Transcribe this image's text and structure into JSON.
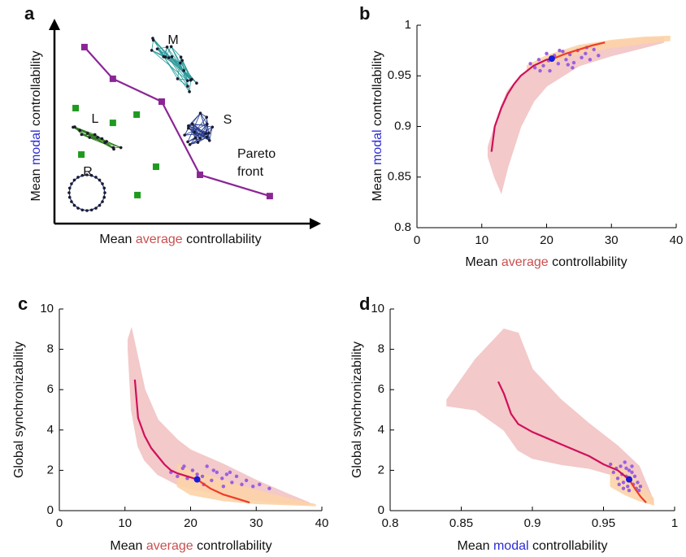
{
  "chart_data": [
    {
      "type": "scatter",
      "panel": "a",
      "xlabel": [
        {
          "text": "Mean "
        },
        {
          "text": "average",
          "color": "#c9504f"
        },
        {
          "text": " controllability"
        }
      ],
      "ylabel": [
        {
          "text": "Mean "
        },
        {
          "text": "modal",
          "color": "#2b2bd6"
        },
        {
          "text": " controllability"
        }
      ],
      "xlim": [
        0,
        100
      ],
      "ylim": [
        0,
        100
      ],
      "pareto": {
        "color": "#8b2596",
        "label": [
          "Pareto",
          "front"
        ],
        "x": [
          11.6,
          22.6,
          41.5,
          56.3,
          83.3
        ],
        "y": [
          89.7,
          73.6,
          62.0,
          24.8,
          14.0
        ]
      },
      "points": {
        "color": "#1f9a1f",
        "x": [
          8.2,
          22.6,
          31.8,
          10.4,
          39.3,
          32.1
        ],
        "y": [
          58.7,
          51.2,
          55.4,
          35.1,
          28.9,
          14.5
        ]
      },
      "networks": [
        "L",
        "M",
        "S",
        "R"
      ]
    },
    {
      "type": "line",
      "panel": "b",
      "xlabel": [
        {
          "text": "Mean "
        },
        {
          "text": "average",
          "color": "#c9504f"
        },
        {
          "text": " controllability"
        }
      ],
      "ylabel": [
        {
          "text": "Mean "
        },
        {
          "text": "modal",
          "color": "#2b2bd6"
        },
        {
          "text": " controllability"
        }
      ],
      "xlim": [
        0,
        40
      ],
      "xticks": [
        0,
        10,
        20,
        30,
        40
      ],
      "ylim": [
        0.8,
        1
      ],
      "yticks": [
        0.8,
        0.85,
        0.9,
        0.95,
        1
      ],
      "bands": [
        {
          "color": "#f2c4c4",
          "x": [
            11,
            12,
            13,
            14,
            16,
            18,
            20,
            25,
            30,
            35,
            38
          ],
          "lower": [
            0.87,
            0.85,
            0.835,
            0.86,
            0.9,
            0.925,
            0.94,
            0.96,
            0.97,
            0.978,
            0.983
          ],
          "upper": [
            0.88,
            0.9,
            0.92,
            0.935,
            0.95,
            0.96,
            0.967,
            0.978,
            0.984,
            0.987,
            0.988
          ]
        },
        {
          "color": "#fcd3a8",
          "x": [
            17,
            20,
            25,
            30,
            35,
            39
          ],
          "lower": [
            0.955,
            0.962,
            0.972,
            0.978,
            0.982,
            0.985
          ],
          "upper": [
            0.96,
            0.97,
            0.98,
            0.985,
            0.988,
            0.989
          ]
        }
      ],
      "points": {
        "color": "#9b5fe0",
        "x": [
          17.5,
          18.2,
          18.8,
          19.5,
          20,
          20.5,
          21.2,
          21.8,
          22.5,
          23,
          23.6,
          24.2,
          24.8,
          25.4,
          26,
          26.7,
          27.3,
          28,
          19,
          22,
          24,
          26.2,
          20.3,
          23.3
        ],
        "y": [
          0.962,
          0.958,
          0.966,
          0.96,
          0.972,
          0.955,
          0.97,
          0.962,
          0.974,
          0.966,
          0.971,
          0.963,
          0.975,
          0.968,
          0.972,
          0.966,
          0.976,
          0.97,
          0.955,
          0.975,
          0.958,
          0.978,
          0.965,
          0.961
        ]
      },
      "lines": [
        {
          "color": "#d0105c",
          "x": [
            11.5,
            12,
            13,
            14,
            15,
            16,
            17,
            18,
            19,
            20,
            21
          ],
          "y": [
            0.875,
            0.9,
            0.918,
            0.932,
            0.942,
            0.95,
            0.955,
            0.96,
            0.963,
            0.966,
            0.967
          ]
        },
        {
          "color": "#ee3b2b",
          "x": [
            21,
            23,
            25,
            27,
            29
          ],
          "y": [
            0.967,
            0.972,
            0.976,
            0.98,
            0.983
          ]
        }
      ],
      "highlight": {
        "color": "#1a1adb",
        "x": 20.8,
        "y": 0.967
      }
    },
    {
      "type": "line",
      "panel": "c",
      "xlabel": [
        {
          "text": "Mean "
        },
        {
          "text": "average",
          "color": "#c9504f"
        },
        {
          "text": " controllability"
        }
      ],
      "ylabel": [
        {
          "text": "Global synchronizability"
        }
      ],
      "xlim": [
        0,
        40
      ],
      "xticks": [
        0,
        10,
        20,
        30,
        40
      ],
      "ylim": [
        0,
        10
      ],
      "yticks": [
        0,
        2,
        4,
        6,
        8,
        10
      ],
      "bands": [
        {
          "color": "#f2c4c4",
          "x": [
            10.5,
            11,
            12,
            13,
            15,
            18,
            20,
            25,
            30,
            35,
            38
          ],
          "lower": [
            8,
            5,
            3.2,
            2.5,
            1.8,
            1.3,
            1.1,
            0.8,
            0.5,
            0.35,
            0.3
          ],
          "upper": [
            8.5,
            9,
            7.5,
            6,
            4.5,
            3.5,
            3,
            2.3,
            1.5,
            0.8,
            0.4
          ]
        },
        {
          "color": "#fcd3a8",
          "x": [
            18,
            20,
            25,
            30,
            35,
            39
          ],
          "lower": [
            1.2,
            0.8,
            0.5,
            0.35,
            0.3,
            0.25
          ],
          "upper": [
            2.3,
            2,
            1.5,
            1,
            0.6,
            0.3
          ]
        }
      ],
      "points": {
        "color": "#9b5fe0",
        "x": [
          17,
          18,
          18.8,
          19.5,
          20.3,
          21,
          21.8,
          22.5,
          23.2,
          24,
          24.8,
          25.5,
          26.3,
          27,
          27.8,
          28.5,
          29.5,
          30.5,
          32,
          19,
          22,
          25,
          23.5,
          26
        ],
        "y": [
          1.9,
          1.7,
          2.1,
          1.6,
          2.0,
          1.8,
          1.7,
          2.2,
          1.5,
          1.9,
          1.6,
          1.8,
          1.4,
          1.7,
          1.3,
          1.5,
          1.2,
          1.3,
          1.1,
          2.2,
          1.3,
          1.2,
          2.0,
          1.9
        ]
      },
      "lines": [
        {
          "color": "#d0105c",
          "x": [
            11.5,
            12,
            13,
            14,
            15,
            16,
            17,
            18,
            19,
            20,
            21
          ],
          "y": [
            6.5,
            4.6,
            3.7,
            3.1,
            2.7,
            2.3,
            2.0,
            1.85,
            1.75,
            1.65,
            1.55
          ]
        },
        {
          "color": "#ee3b2b",
          "x": [
            21,
            23,
            25,
            27,
            29
          ],
          "y": [
            1.55,
            1.1,
            0.8,
            0.6,
            0.4
          ]
        }
      ],
      "highlight": {
        "color": "#1a1adb",
        "x": 21,
        "y": 1.55
      }
    },
    {
      "type": "line",
      "panel": "d",
      "xlabel": [
        {
          "text": "Mean "
        },
        {
          "text": "modal",
          "color": "#2b2bd6"
        },
        {
          "text": " controllability"
        }
      ],
      "ylabel": [
        {
          "text": "Global synchronizability"
        }
      ],
      "xlim": [
        0.8,
        1
      ],
      "xticks": [
        0.8,
        0.85,
        0.9,
        0.95,
        1
      ],
      "ylim": [
        0,
        10
      ],
      "yticks": [
        0,
        2,
        4,
        6,
        8,
        10
      ],
      "bands": [
        {
          "color": "#f2c4c4",
          "x": [
            0.84,
            0.86,
            0.88,
            0.89,
            0.9,
            0.92,
            0.94,
            0.96,
            0.975,
            0.985
          ],
          "lower": [
            5.2,
            5,
            4,
            3,
            2.6,
            2.3,
            2.1,
            1.7,
            1.0,
            0.3
          ],
          "upper": [
            5.5,
            7.5,
            9,
            8.8,
            7,
            5.5,
            4.3,
            3.2,
            2.2,
            0.5
          ]
        },
        {
          "color": "#fcd3a8",
          "x": [
            0.955,
            0.965,
            0.975,
            0.985
          ],
          "lower": [
            1.2,
            0.8,
            0.5,
            0.3
          ],
          "upper": [
            2.4,
            2.0,
            1.4,
            0.6
          ]
        }
      ],
      "points": {
        "color": "#9b5fe0",
        "x": [
          0.955,
          0.957,
          0.959,
          0.96,
          0.962,
          0.963,
          0.964,
          0.965,
          0.966,
          0.967,
          0.968,
          0.969,
          0.97,
          0.971,
          0.972,
          0.973,
          0.974,
          0.975,
          0.976,
          0.961,
          0.966,
          0.97,
          0.964,
          0.968
        ],
        "y": [
          2.3,
          1.9,
          2.1,
          1.6,
          2.2,
          1.8,
          1.4,
          2.4,
          1.7,
          1.2,
          2.0,
          1.5,
          1.9,
          1.3,
          1.7,
          1.1,
          1.4,
          1.0,
          1.2,
          1.3,
          2.1,
          2.2,
          1.1,
          1.0
        ]
      },
      "lines": [
        {
          "color": "#d0105c",
          "x": [
            0.876,
            0.88,
            0.885,
            0.89,
            0.9,
            0.91,
            0.92,
            0.93,
            0.94,
            0.95,
            0.96,
            0.968
          ],
          "y": [
            6.4,
            5.8,
            4.8,
            4.3,
            3.9,
            3.6,
            3.3,
            3.0,
            2.7,
            2.3,
            2.0,
            1.55
          ]
        },
        {
          "color": "#ee3b2b",
          "x": [
            0.968,
            0.972,
            0.976,
            0.98
          ],
          "y": [
            1.55,
            1.1,
            0.7,
            0.4
          ]
        }
      ],
      "highlight": {
        "color": "#1a1adb",
        "x": 0.968,
        "y": 1.55
      }
    }
  ]
}
